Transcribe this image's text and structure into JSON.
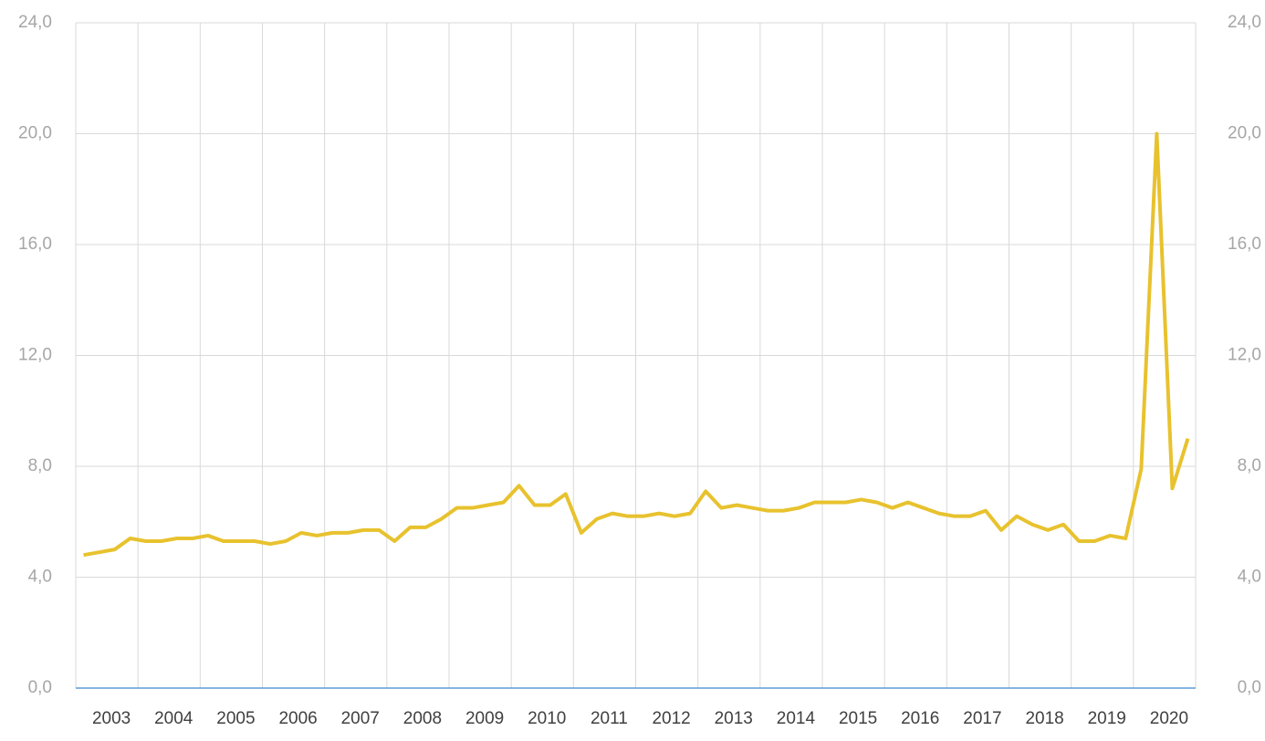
{
  "chart_data": {
    "type": "line",
    "categories": [
      "2003",
      null,
      null,
      null,
      "2004",
      null,
      null,
      null,
      "2005",
      null,
      null,
      null,
      "2006",
      null,
      null,
      null,
      "2007",
      null,
      null,
      null,
      "2008",
      null,
      null,
      null,
      "2009",
      null,
      null,
      null,
      "2010",
      null,
      null,
      null,
      "2011",
      null,
      null,
      null,
      "2012",
      null,
      null,
      null,
      "2013",
      null,
      null,
      null,
      "2014",
      null,
      null,
      null,
      "2015",
      null,
      null,
      null,
      "2016",
      null,
      null,
      null,
      "2017",
      null,
      null,
      null,
      "2018",
      null,
      null,
      null,
      "2019",
      null,
      null,
      null,
      "2020",
      null,
      null,
      null
    ],
    "values": [
      4.8,
      4.9,
      5.0,
      5.4,
      5.3,
      5.3,
      5.4,
      5.4,
      5.5,
      5.3,
      5.3,
      5.3,
      5.2,
      5.3,
      5.6,
      5.5,
      5.6,
      5.6,
      5.7,
      5.7,
      5.3,
      5.8,
      5.8,
      6.1,
      6.5,
      6.5,
      6.6,
      6.7,
      7.3,
      6.6,
      6.6,
      7.0,
      5.6,
      6.1,
      6.3,
      6.2,
      6.2,
      6.3,
      6.2,
      6.3,
      7.1,
      6.5,
      6.6,
      6.5,
      6.4,
      6.4,
      6.5,
      6.7,
      6.7,
      6.7,
      6.8,
      6.7,
      6.5,
      6.7,
      6.5,
      6.3,
      6.2,
      6.2,
      6.4,
      5.7,
      6.2,
      5.9,
      5.7,
      5.9,
      5.3,
      5.3,
      5.5,
      5.4,
      7.9,
      20.0,
      7.2,
      9.0
    ],
    "color": "#e8c22e",
    "ylim": [
      0,
      24
    ],
    "yticks": [
      {
        "value": 0,
        "label": "0,0"
      },
      {
        "value": 4,
        "label": "4,0"
      },
      {
        "value": 8,
        "label": "8,0"
      },
      {
        "value": 12,
        "label": "12,0"
      },
      {
        "value": 16,
        "label": "16,0"
      },
      {
        "value": 20,
        "label": "20,0"
      },
      {
        "value": 24,
        "label": "24,0"
      }
    ],
    "y2lim": [
      0,
      24
    ],
    "y2ticks": [
      {
        "value": 0,
        "label": "0,0"
      },
      {
        "value": 4,
        "label": "4,0"
      },
      {
        "value": 8,
        "label": "8,0"
      },
      {
        "value": 12,
        "label": "12,0"
      },
      {
        "value": 16,
        "label": "16,0"
      },
      {
        "value": 20,
        "label": "20,0"
      },
      {
        "value": 24,
        "label": "24,0"
      }
    ],
    "grid": true
  }
}
